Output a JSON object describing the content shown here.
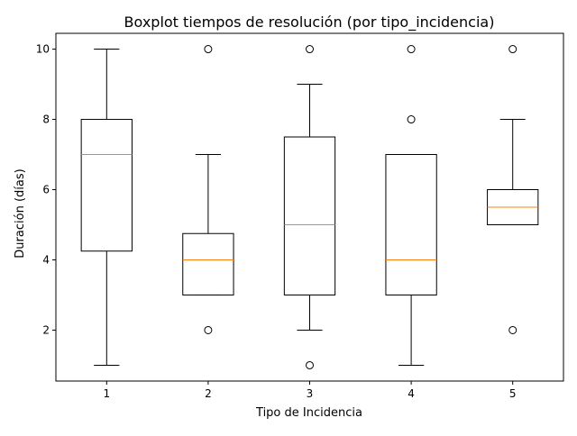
{
  "chart_data": {
    "type": "boxplot",
    "title": "Boxplot tiempos de resolución (por tipo_incidencia)",
    "xlabel": "Tipo de Incidencia",
    "ylabel": "Duración (días)",
    "categories": [
      "1",
      "2",
      "3",
      "4",
      "5"
    ],
    "ylim": [
      0.55,
      10.45
    ],
    "yticks": [
      2,
      4,
      6,
      8,
      10
    ],
    "grid": false,
    "series": [
      {
        "category": "1",
        "whisker_low": 1,
        "q1": 4.25,
        "median": 7,
        "q3": 8,
        "whisker_high": 10,
        "outliers": []
      },
      {
        "category": "2",
        "whisker_low": 3,
        "q1": 3,
        "median": 4,
        "q3": 4.75,
        "whisker_high": 7,
        "outliers": [
          2,
          10
        ]
      },
      {
        "category": "3",
        "whisker_low": 2,
        "q1": 3,
        "median": 5,
        "q3": 7.5,
        "whisker_high": 9,
        "outliers": [
          1,
          10
        ]
      },
      {
        "category": "4",
        "whisker_low": 1,
        "q1": 3,
        "median": 4,
        "q3": 7,
        "whisker_high": 7,
        "outliers": [
          8,
          10
        ]
      },
      {
        "category": "5",
        "whisker_low": 5,
        "q1": 5,
        "median": 5.5,
        "q3": 6,
        "whisker_high": 8,
        "outliers": [
          2,
          10
        ]
      }
    ],
    "colors": {
      "box": "#000000",
      "median": "#ff7f0e",
      "outlier": "#000000",
      "background": "#ffffff"
    }
  }
}
